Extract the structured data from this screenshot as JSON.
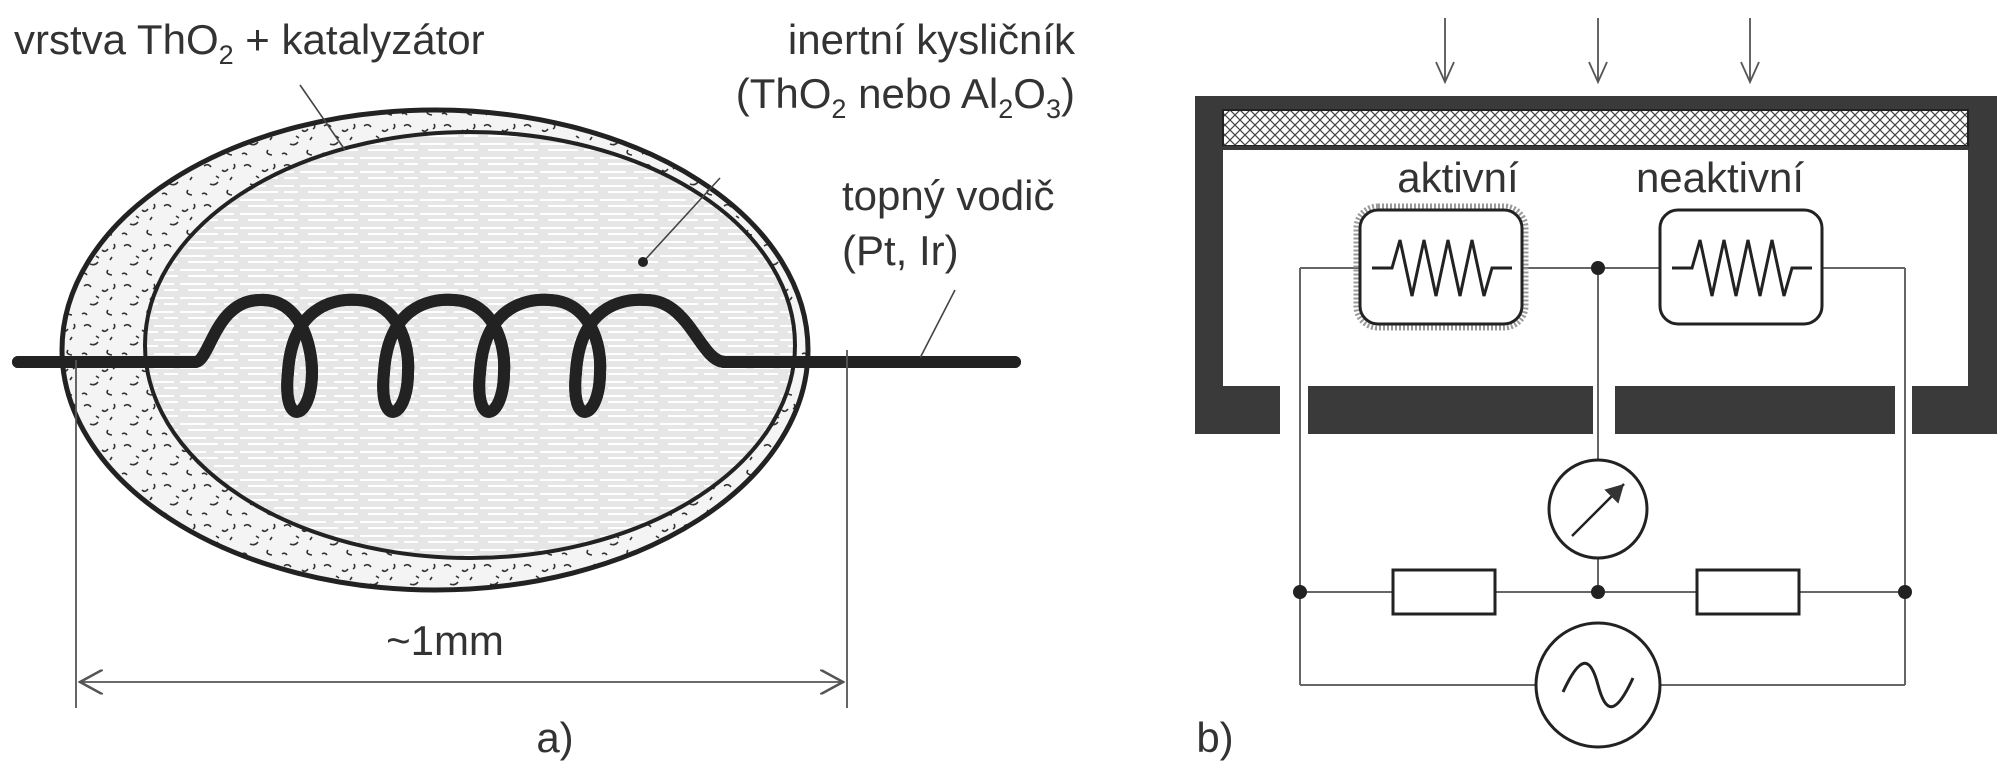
{
  "panel_a": {
    "label_catalyst": {
      "prefix": "vrstva ThO",
      "sub": "2",
      "suffix": " + katalyzátor"
    },
    "label_oxide_line1": "inertní kysličník",
    "label_oxide_line2": {
      "p1": "(ThO",
      "s1": "2",
      "p2": " nebo Al",
      "s2": "2",
      "p3": "O",
      "s3": "3",
      "p4": ")"
    },
    "label_wire_line1": "topný vodič",
    "label_wire_line2": "(Pt, Ir)",
    "dimension": "~1mm",
    "caption": "a)"
  },
  "panel_b": {
    "label_active": "aktivní",
    "label_inactive": "neaktivní",
    "caption": "b)"
  },
  "colors": {
    "ink": "#333333",
    "housing": "#3a3a3a",
    "ellipse_fill": "#e4e4e4",
    "line": "#555555"
  },
  "icons": {
    "meter": "galvanometer-icon",
    "source": "ac-source-icon",
    "element": "resistor-zigzag-icon"
  }
}
